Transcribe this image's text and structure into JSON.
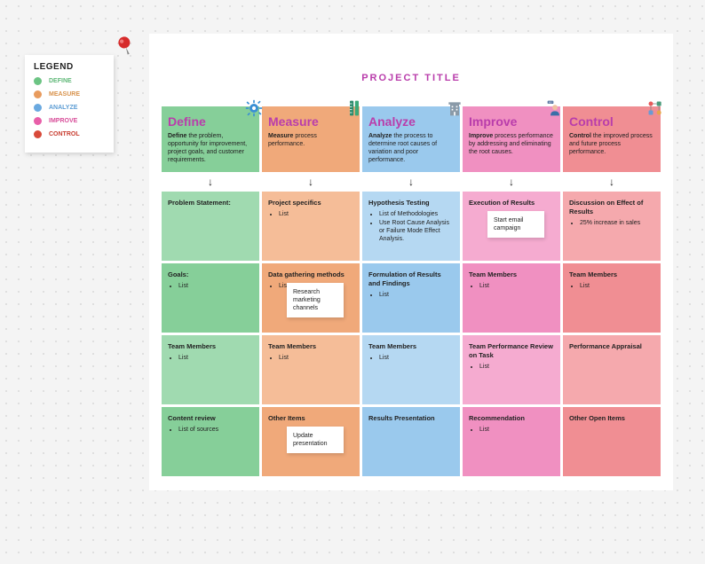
{
  "title": "PROJECT TITLE",
  "legend": {
    "title": "LEGEND",
    "items": [
      {
        "label": "DEFINE",
        "color": "#6cc484",
        "textColor": "#5fb878"
      },
      {
        "label": "MEASURE",
        "color": "#e89b5d",
        "textColor": "#d8934d"
      },
      {
        "label": "ANALYZE",
        "color": "#6aa9e0",
        "textColor": "#5d9dd4"
      },
      {
        "label": "IMPROVE",
        "color": "#e85fa9",
        "textColor": "#d84f9a"
      },
      {
        "label": "CONTROL",
        "color": "#d84a3a",
        "textColor": "#c83d30"
      }
    ]
  },
  "pin_color": "#d62a2a",
  "columns": [
    {
      "title": "Define",
      "title_color": "#b93dab",
      "bg": "#86cf99",
      "bg_light": "#a0dab0",
      "icon": "gear",
      "icon_color": "#3a8fd4",
      "desc_strong": "Define",
      "desc": " the problem, opportunity for improvement, project goals, and customer requirements.",
      "cards": [
        {
          "title": "Problem Statement:",
          "items": []
        },
        {
          "title": "Goals:",
          "items": [
            "List"
          ]
        },
        {
          "title": "Team Members",
          "items": [
            "List"
          ]
        },
        {
          "title": "Content review",
          "items": [
            "List of sources"
          ]
        }
      ]
    },
    {
      "title": "Measure",
      "title_color": "#b93dab",
      "bg": "#f0a97a",
      "bg_light": "#f5bd98",
      "icon": "ruler",
      "icon_color": "#2b8a6b",
      "desc_strong": "Measure",
      "desc": " process performance.",
      "cards": [
        {
          "title": "Project specifics",
          "items": [
            "List"
          ]
        },
        {
          "title": "Data gathering methods",
          "items": [
            "List"
          ]
        },
        {
          "title": "Team Members",
          "items": [
            "List"
          ]
        },
        {
          "title": "Other Items",
          "items": []
        }
      ]
    },
    {
      "title": "Analyze",
      "title_color": "#b93dab",
      "bg": "#9ac9ed",
      "bg_light": "#b5d8f2",
      "icon": "building",
      "icon_color": "#8a9aa8",
      "desc_strong": "Analyze",
      "desc": " the process to determine root causes of variation and poor performance.",
      "cards": [
        {
          "title": "Hypothesis Testing",
          "items": [
            "List of Methodologies",
            "Use Root Cause Analysis or Failure Mode Effect Analysis."
          ]
        },
        {
          "title": "Formulation of Results and Findings",
          "items": [
            "List"
          ]
        },
        {
          "title": "Team Members",
          "items": [
            "List"
          ]
        },
        {
          "title": "Results Presentation",
          "items": []
        }
      ]
    },
    {
      "title": "Improve",
      "title_color": "#b93dab",
      "bg": "#f090c1",
      "bg_light": "#f5abd0",
      "icon": "person",
      "icon_color": "#3a6fa8",
      "desc_strong": "Improve",
      "desc": " process performance by addressing and eliminating the root causes.",
      "cards": [
        {
          "title": "Execution of Results",
          "items": []
        },
        {
          "title": "Team Members",
          "items": [
            "List"
          ]
        },
        {
          "title": "Team Performance Review on Task",
          "items": [
            "List"
          ]
        },
        {
          "title": "Recommendation",
          "items": [
            "List"
          ]
        }
      ]
    },
    {
      "title": "Control",
      "title_color": "#b93dab",
      "bg": "#f08e93",
      "bg_light": "#f5a9ad",
      "icon": "flow",
      "icon_color": "#4a9a7a",
      "desc_strong": "Control",
      "desc": " the improved process and future process performance.",
      "cards": [
        {
          "title": "Discussion on Effect of Results",
          "items": [
            "25% increase in sales"
          ]
        },
        {
          "title": "Team Members",
          "items": [
            "List"
          ]
        },
        {
          "title": "Performance Appraisal",
          "items": []
        },
        {
          "title": "Other Open Items",
          "items": []
        }
      ]
    }
  ],
  "stickies": [
    {
      "text": "Start email campaign",
      "col": 3,
      "card": 0
    },
    {
      "text": "Research marketing channels",
      "col": 1,
      "card": 1
    },
    {
      "text": "Update presentation",
      "col": 1,
      "card": 3
    }
  ],
  "card_min_height": 78,
  "header_min_height": 74,
  "sticky_bg": "#ffffff"
}
